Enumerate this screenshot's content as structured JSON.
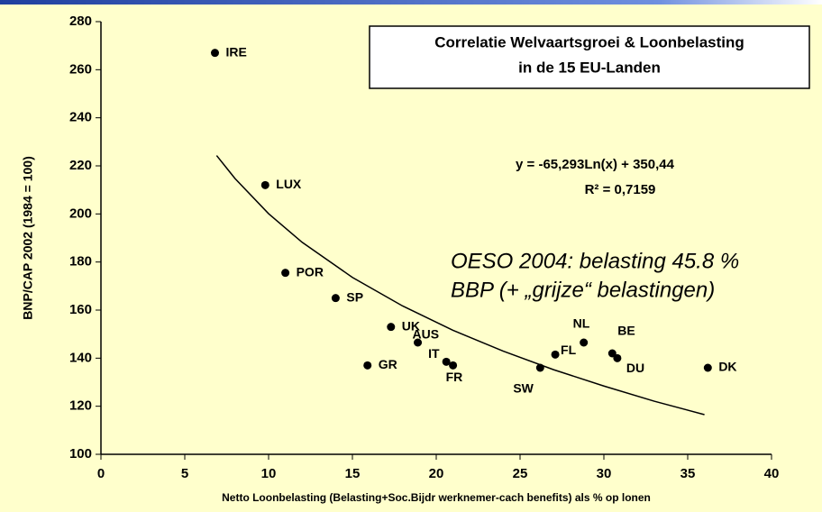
{
  "chart_data": {
    "type": "scatter",
    "title": [
      "Correlatie Welvaartsgroei  &  Loonbelasting",
      "in de 15 EU-Landen"
    ],
    "equation": [
      "y = -65,293Ln(x) + 350,44",
      "R² = 0,7159"
    ],
    "annotation": [
      "OESO 2004: belasting 45.8 %",
      "BBP (+ „grijze“ belastingen)"
    ],
    "xlabel": "Netto Loonbelasting (Belasting+Soc.Bijdr werknemer-cach benefits) als % op lonen",
    "ylabel": "BNP/CAP 2002  (1984 = 100)",
    "categories": [
      "IRE",
      "LUX",
      "POR",
      "SP",
      "UK",
      "GR",
      "AUS",
      "IT",
      "FR",
      "SW",
      "FL",
      "NL",
      "BE",
      "DU",
      "DK"
    ],
    "x": [
      6.8,
      9.8,
      11.0,
      14.0,
      17.3,
      15.9,
      18.9,
      20.6,
      21.0,
      26.2,
      27.1,
      28.8,
      30.5,
      30.8,
      36.2
    ],
    "values": [
      267,
      212,
      175.5,
      165,
      153,
      137,
      146.5,
      138.5,
      137,
      136,
      141.5,
      146.5,
      142,
      140,
      136
    ],
    "color": "#000000",
    "trendline": {
      "x": [
        6.9,
        8,
        10,
        12,
        15,
        18,
        21,
        24,
        27,
        30,
        33,
        36
      ],
      "values": [
        224.3,
        214.7,
        200.1,
        188.2,
        173.6,
        161.7,
        151.6,
        142.9,
        135.2,
        128.4,
        122.1,
        116.5
      ],
      "color": "#000000"
    },
    "xlim": [
      0,
      40
    ],
    "xticks": [
      0,
      5,
      10,
      15,
      20,
      25,
      30,
      35,
      40
    ],
    "ylim": [
      100,
      280
    ],
    "yticks": [
      100,
      120,
      140,
      160,
      180,
      200,
      220,
      240,
      260,
      280
    ]
  }
}
